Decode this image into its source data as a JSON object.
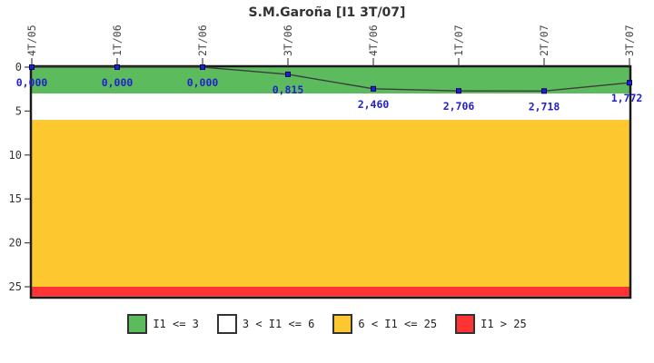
{
  "header": {
    "title": "S.M.Garoña [I1 3T/07]"
  },
  "chart_data": {
    "type": "line",
    "title": "S.M.Garoña [I1 3T/07]",
    "categories": [
      "4T/05",
      "1T/06",
      "2T/06",
      "3T/06",
      "4T/06",
      "1T/07",
      "2T/07",
      "3T/07"
    ],
    "series": [
      {
        "name": "I1",
        "values": [
          0.0,
          0.0,
          0.0,
          0.815,
          2.46,
          2.706,
          2.718,
          1.772
        ]
      }
    ],
    "point_labels": [
      "0,000",
      "0,000",
      "0,000",
      "0,815",
      "2,460",
      "2,706",
      "2,718",
      "1,772"
    ],
    "y_axis": {
      "ticks": [
        0,
        5,
        10,
        15,
        20,
        25
      ],
      "min": 0,
      "max": 26.1,
      "inverted": true,
      "grid": false
    },
    "bands": [
      {
        "label": "I1 <= 3",
        "from": 0,
        "to": 3,
        "color": "#5cbb5c"
      },
      {
        "label": "3 < I1 <= 6",
        "from": 3,
        "to": 6,
        "color": "#ffffff"
      },
      {
        "label": "6 < I1 <= 25",
        "from": 6,
        "to": 25,
        "color": "#fdc72f"
      },
      {
        "label": "I1 > 25",
        "from": 25,
        "to": 26.1,
        "color": "#ff3333"
      }
    ],
    "legend_position": "bottom",
    "colors": {
      "line": "#3c3c3c",
      "point": "#2222cc",
      "point_border": "#000066",
      "value_label": "#2222cc",
      "axis_text": "#444444",
      "border": "#1a1a1a"
    }
  },
  "legend": {
    "items": [
      {
        "label": "I1 <= 3",
        "color": "#5cbb5c"
      },
      {
        "label": "3 < I1 <= 6",
        "color": "#ffffff"
      },
      {
        "label": "6 < I1 <= 25",
        "color": "#fdc72f"
      },
      {
        "label": "I1 > 25",
        "color": "#ff3333"
      }
    ]
  }
}
